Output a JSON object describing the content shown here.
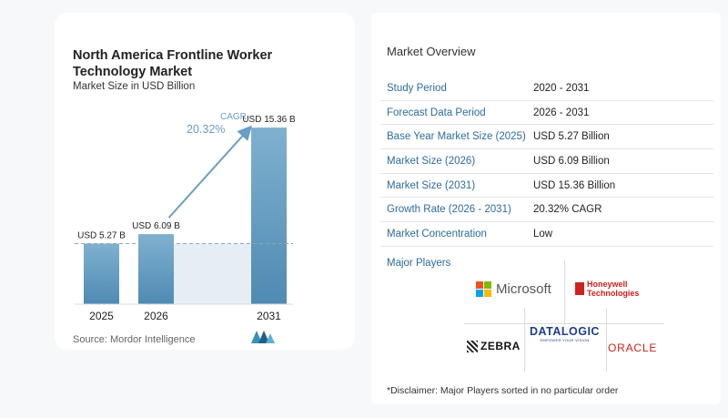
{
  "chart": {
    "title": "North America Frontline Worker Technology Market",
    "subtitle": "Market Size in USD Billion",
    "cagr_label": "CAGR",
    "cagr_value": "20.32%",
    "source": "Source:  Mordor Intelligence"
  },
  "chart_data": {
    "type": "bar",
    "title": "North America Frontline Worker Technology Market",
    "subtitle": "Market Size in USD Billion",
    "categories": [
      "2025",
      "2026",
      "2031"
    ],
    "values": [
      5.27,
      6.09,
      15.36
    ],
    "data_labels": [
      "USD 5.27 B",
      "USD 6.09 B",
      "USD 15.36 B"
    ],
    "annotation": "CAGR 20.32%",
    "ylim": [
      0,
      16
    ],
    "grid": false,
    "reference_line_at": 5.27
  },
  "overview": {
    "title": "Market Overview",
    "rows": [
      {
        "key": "Study Period",
        "value": "2020 - 2031"
      },
      {
        "key": "Forecast Data Period",
        "value": "2026 - 2031"
      },
      {
        "key": "Base Year Market Size (2025)",
        "value": "USD 5.27 Billion"
      },
      {
        "key": "Market Size (2026)",
        "value": "USD 6.09 Billion"
      },
      {
        "key": "Market Size (2031)",
        "value": "USD 15.36 Billion"
      },
      {
        "key": "Growth Rate (2026 - 2031)",
        "value": "20.32% CAGR"
      },
      {
        "key": "Market Concentration",
        "value": "Low"
      }
    ]
  },
  "players": {
    "title": "Major Players",
    "microsoft": "Microsoft",
    "honeywell_line1": "Honeywell",
    "honeywell_line2": "Technologies",
    "zebra": "ZEBRA",
    "datalogic": "DATALOGIC",
    "datalogic_sub": "EMPOWER YOUR VISION",
    "oracle": "ORACLE",
    "microsoft_colors": [
      "#f25022",
      "#7fba00",
      "#00a4ef",
      "#ffb900"
    ]
  },
  "disclaimer": "*Disclaimer: Major Players sorted in no particular order",
  "colors": {
    "bar_top": "#7fb1cf",
    "bar_bottom": "#4f8ab3",
    "projection_fill": "#e6eef5",
    "arrow": "#6a9ec4",
    "link": "#2d6c9c"
  }
}
